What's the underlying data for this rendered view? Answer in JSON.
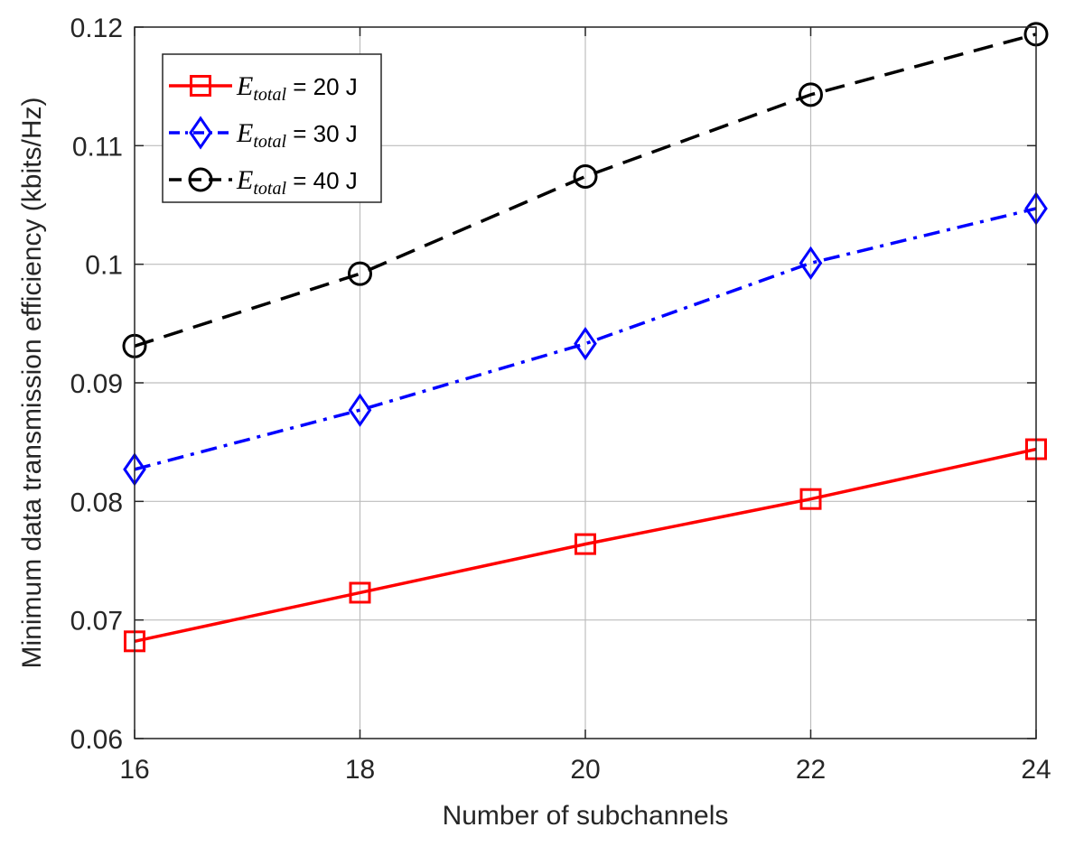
{
  "chart_data": {
    "type": "line",
    "xlabel": "Number of subchannels",
    "ylabel": "Minimum data transmission efficiency (kbits/Hz)",
    "xlim": [
      16,
      24
    ],
    "ylim": [
      0.06,
      0.12
    ],
    "x_ticks": [
      16,
      18,
      20,
      22,
      24
    ],
    "x_tick_labels": [
      "16",
      "18",
      "20",
      "22",
      "24"
    ],
    "y_ticks": [
      0.06,
      0.07,
      0.08,
      0.09,
      0.1,
      0.11,
      0.12
    ],
    "y_tick_labels": [
      "0.06",
      "0.07",
      "0.08",
      "0.09",
      "0.1",
      "0.11",
      "0.12"
    ],
    "grid": true,
    "legend_position": "top-left",
    "x": [
      16,
      18,
      20,
      22,
      24
    ],
    "series": [
      {
        "legend_var": "E",
        "legend_sub": "total",
        "legend_value": " = 20 J",
        "color": "#ff0000",
        "line_style": "solid",
        "marker": "square",
        "values": [
          0.0682,
          0.0723,
          0.0764,
          0.0802,
          0.0844
        ]
      },
      {
        "legend_var": "E",
        "legend_sub": "total",
        "legend_value": " = 30 J",
        "color": "#0000ff",
        "line_style": "dashdot",
        "marker": "diamond",
        "values": [
          0.0827,
          0.0877,
          0.0933,
          0.1001,
          0.1047
        ]
      },
      {
        "legend_var": "E",
        "legend_sub": "total",
        "legend_value": " = 40 J",
        "color": "#000000",
        "line_style": "dashed",
        "marker": "circle",
        "values": [
          0.0931,
          0.0992,
          0.1074,
          0.1143,
          0.1194
        ]
      }
    ]
  }
}
